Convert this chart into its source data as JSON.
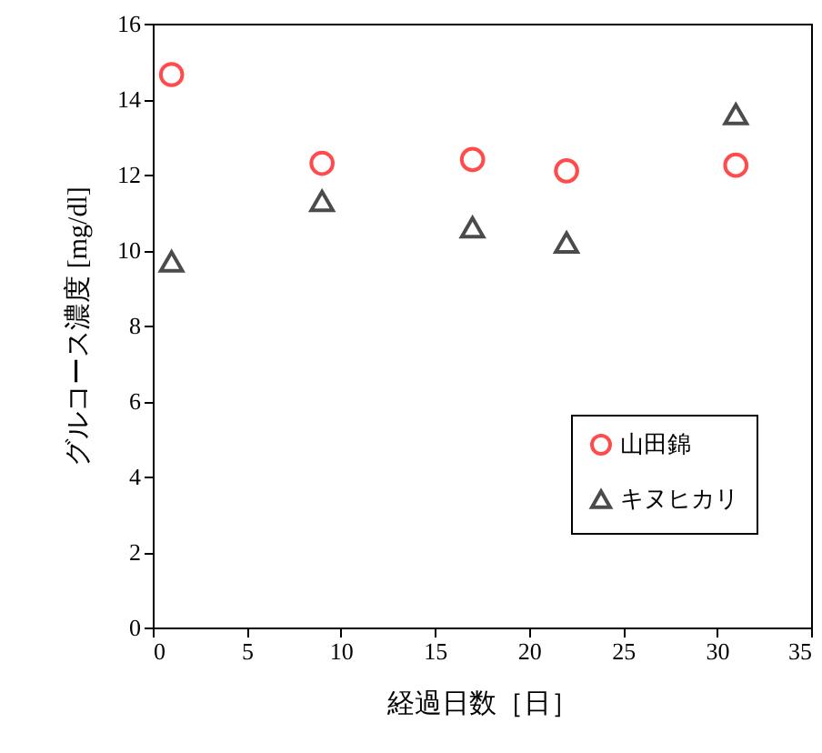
{
  "chart_data": {
    "type": "scatter",
    "xlabel": "経過日数［日］",
    "ylabel": "グルコース濃度 [mg/dl]",
    "xlim": [
      0,
      35
    ],
    "xticks": [
      0,
      5,
      10,
      15,
      20,
      25,
      30,
      35
    ],
    "ylim": [
      0,
      16
    ],
    "yticks": [
      0,
      2,
      4,
      6,
      8,
      10,
      12,
      14,
      16
    ],
    "x": [
      1,
      9,
      17,
      22,
      31
    ],
    "legend": "bottom right",
    "grid": false,
    "series": [
      {
        "name": "山田錦",
        "color": "#ff0000",
        "marker": "circle",
        "values": [
          14.65,
          12.3,
          12.4,
          12.1,
          12.25
        ]
      },
      {
        "name": "キヌヒカリ",
        "color": "#000000",
        "marker": "triangle",
        "values": [
          9.7,
          11.3,
          10.6,
          10.2,
          13.6
        ]
      }
    ]
  }
}
